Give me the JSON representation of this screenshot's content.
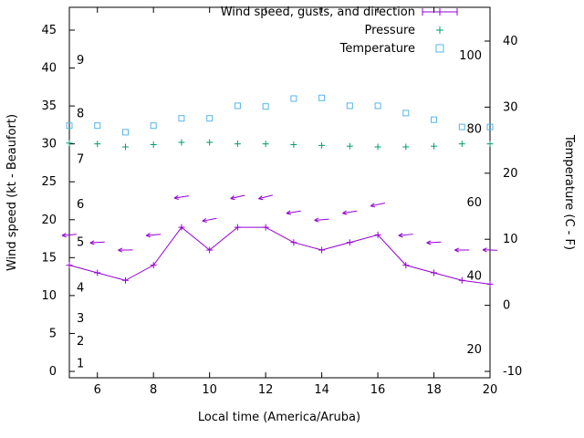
{
  "chart_data": {
    "type": "line",
    "title": "",
    "xlabel": "Local time (America/Aruba)",
    "ylabel_left": "Wind speed (kt - Beaufort)",
    "ylabel_right": "Temperature (C - F)",
    "x_range": [
      5,
      20
    ],
    "x_ticks": [
      6,
      8,
      10,
      12,
      14,
      16,
      18,
      20
    ],
    "y_left_ticks": [
      0,
      5,
      10,
      15,
      20,
      25,
      30,
      35,
      40,
      45
    ],
    "y_right_ticks": [
      -10,
      0,
      10,
      20,
      30,
      40
    ],
    "grid": false,
    "legend_position": "top-right-inside",
    "beaufort_scale_labels": [
      {
        "label": "1",
        "kt": 1
      },
      {
        "label": "2",
        "kt": 4
      },
      {
        "label": "3",
        "kt": 7
      },
      {
        "label": "4",
        "kt": 11
      },
      {
        "label": "5",
        "kt": 17
      },
      {
        "label": "6",
        "kt": 22
      },
      {
        "label": "7",
        "kt": 28
      },
      {
        "label": "8",
        "kt": 34
      },
      {
        "label": "9",
        "kt": 41
      }
    ],
    "fahrenheit_scale_labels": [
      {
        "label": "20",
        "f": 20
      },
      {
        "label": "40",
        "f": 40
      },
      {
        "label": "60",
        "f": 60
      },
      {
        "label": "80",
        "f": 80
      },
      {
        "label": "100",
        "f": 100
      }
    ],
    "x": [
      5,
      6,
      7,
      8,
      9,
      10,
      11,
      12,
      13,
      14,
      15,
      16,
      17,
      18,
      19,
      20
    ],
    "series": [
      {
        "name": "Wind speed, gusts, and direction",
        "type": "line+points+arrows",
        "axis": "left",
        "color": "#9400d3",
        "wind_kt": [
          14,
          13,
          12,
          14,
          19,
          16,
          19,
          19,
          17,
          16,
          17,
          18,
          14,
          13,
          12,
          11.5
        ],
        "gust_kt": [
          18,
          17,
          16,
          18,
          23,
          20,
          23,
          23,
          21,
          20,
          21,
          22,
          18,
          17,
          16,
          16
        ],
        "arrow_angles_deg": [
          175,
          177,
          179,
          175,
          171,
          169,
          167,
          166,
          171,
          175,
          171,
          168,
          174,
          177,
          180,
          182
        ]
      },
      {
        "name": "Pressure",
        "type": "points",
        "marker": "plus",
        "axis": "left",
        "color": "#009e73",
        "values": [
          30.1,
          30.0,
          29.6,
          29.9,
          30.2,
          30.2,
          30.0,
          30.0,
          29.9,
          29.8,
          29.7,
          29.6,
          29.6,
          29.7,
          30.0,
          30.0
        ]
      },
      {
        "name": "Temperature",
        "type": "points",
        "marker": "open-square",
        "axis": "right",
        "color": "#56b4e9",
        "values_c": [
          27.2,
          27.2,
          26.2,
          27.2,
          28.3,
          28.3,
          30.2,
          30.1,
          31.3,
          31.4,
          30.2,
          30.2,
          29.1,
          28.1,
          27.0,
          27.0
        ]
      }
    ]
  }
}
